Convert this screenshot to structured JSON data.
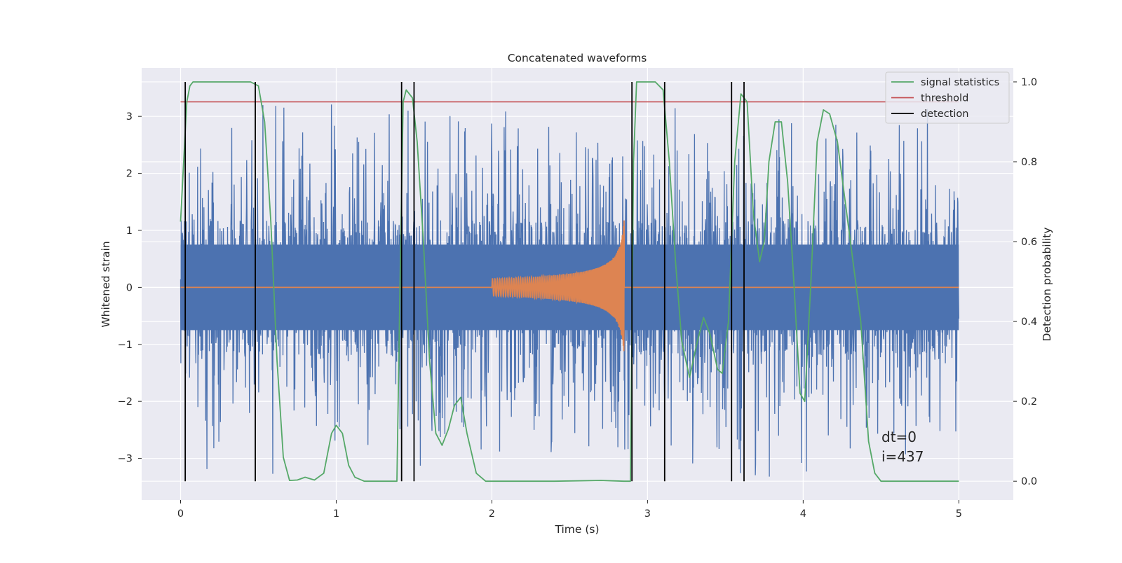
{
  "chart_data": {
    "type": "line",
    "title": "Concatenated waveforms",
    "xlabel": "Time (s)",
    "ylabel": "Whitened strain",
    "y2label": "Detection probability",
    "xlim": [
      -0.25,
      5.35
    ],
    "ylim": [
      -3.73,
      3.85
    ],
    "y2lim": [
      -0.047,
      1.035
    ],
    "xticks": [
      0,
      1,
      2,
      3,
      4,
      5
    ],
    "yticks": [
      3,
      2,
      1,
      0,
      -1,
      -2,
      -3
    ],
    "y2ticks": [
      1.0,
      0.8,
      0.6,
      0.4,
      0.2,
      0.0
    ],
    "xtick_labels": [
      "0",
      "1",
      "2",
      "3",
      "4",
      "5"
    ],
    "ytick_labels": [
      "3",
      "2",
      "1",
      "0",
      "−1",
      "−2",
      "−3"
    ],
    "y2tick_labels": [
      "1.0",
      "0.8",
      "0.6",
      "0.4",
      "0.2",
      "0.0"
    ],
    "grid": true,
    "legend_position": "top-right",
    "legend": [
      "signal statistics",
      "threshold",
      "detection"
    ],
    "annotation": [
      "dt=0",
      "i=437"
    ],
    "colors": {
      "strain": "#4c72b0",
      "injected": "#dd8452",
      "signal_statistics": "#55a868",
      "threshold": "#c44e52",
      "detection": "#000000",
      "background": "#eaeaf2",
      "grid": "#ffffff"
    },
    "series": [
      {
        "name": "signal statistics",
        "axis": "right",
        "x": [
          0.0,
          0.02,
          0.04,
          0.06,
          0.08,
          0.1,
          0.2,
          0.3,
          0.4,
          0.45,
          0.5,
          0.54,
          0.58,
          0.62,
          0.66,
          0.7,
          0.75,
          0.8,
          0.86,
          0.92,
          0.97,
          1.0,
          1.04,
          1.08,
          1.12,
          1.18,
          1.25,
          1.32,
          1.39,
          1.41,
          1.43,
          1.45,
          1.49,
          1.52,
          1.56,
          1.6,
          1.64,
          1.68,
          1.72,
          1.76,
          1.8,
          1.84,
          1.9,
          1.96,
          2.1,
          2.4,
          2.7,
          2.85,
          2.89,
          2.91,
          2.93,
          2.97,
          3.05,
          3.1,
          3.14,
          3.18,
          3.22,
          3.27,
          3.32,
          3.36,
          3.4,
          3.45,
          3.48,
          3.52,
          3.56,
          3.6,
          3.64,
          3.68,
          3.72,
          3.75,
          3.78,
          3.82,
          3.86,
          3.9,
          3.94,
          3.98,
          4.01,
          4.05,
          4.09,
          4.13,
          4.17,
          4.22,
          4.27,
          4.32,
          4.37,
          4.42,
          4.46,
          4.5,
          4.6,
          4.8,
          5.0
        ],
        "values": [
          0.65,
          0.8,
          0.95,
          0.99,
          1.0,
          1.0,
          1.0,
          1.0,
          1.0,
          1.0,
          0.99,
          0.9,
          0.65,
          0.3,
          0.06,
          0.002,
          0.003,
          0.01,
          0.003,
          0.02,
          0.12,
          0.14,
          0.12,
          0.04,
          0.01,
          0.0,
          0.0,
          0.0,
          0.0,
          0.5,
          0.95,
          0.98,
          0.96,
          0.85,
          0.6,
          0.3,
          0.12,
          0.09,
          0.13,
          0.19,
          0.21,
          0.12,
          0.02,
          0.0,
          0.0,
          0.0,
          0.002,
          0.0,
          0.0,
          0.8,
          1.0,
          1.0,
          1.0,
          0.98,
          0.8,
          0.55,
          0.35,
          0.26,
          0.35,
          0.41,
          0.37,
          0.28,
          0.27,
          0.4,
          0.8,
          0.97,
          0.95,
          0.67,
          0.55,
          0.6,
          0.8,
          0.9,
          0.9,
          0.75,
          0.5,
          0.22,
          0.2,
          0.5,
          0.85,
          0.93,
          0.92,
          0.85,
          0.7,
          0.55,
          0.4,
          0.1,
          0.02,
          0.0,
          0.0,
          0.0,
          0.0
        ]
      },
      {
        "name": "threshold",
        "axis": "right",
        "x": [
          0.0,
          5.0
        ],
        "values": [
          0.95,
          0.95
        ]
      },
      {
        "name": "detection",
        "axis": "right",
        "type": "vlines",
        "x": [
          0.03,
          0.48,
          1.42,
          1.5,
          2.9,
          3.11,
          3.54,
          3.62
        ],
        "range": [
          0.0,
          1.0
        ]
      },
      {
        "axis": "left",
        "type": "noise",
        "x_range": [
          0.0,
          5.0
        ],
        "core_amplitude": 0.75,
        "peak_amplitude": 3.5
      },
      {
        "axis": "left",
        "type": "chirp",
        "x_range": [
          2.0,
          2.85
        ],
        "start_amplitude": 0.15,
        "end_amplitude": 1.3
      }
    ]
  }
}
